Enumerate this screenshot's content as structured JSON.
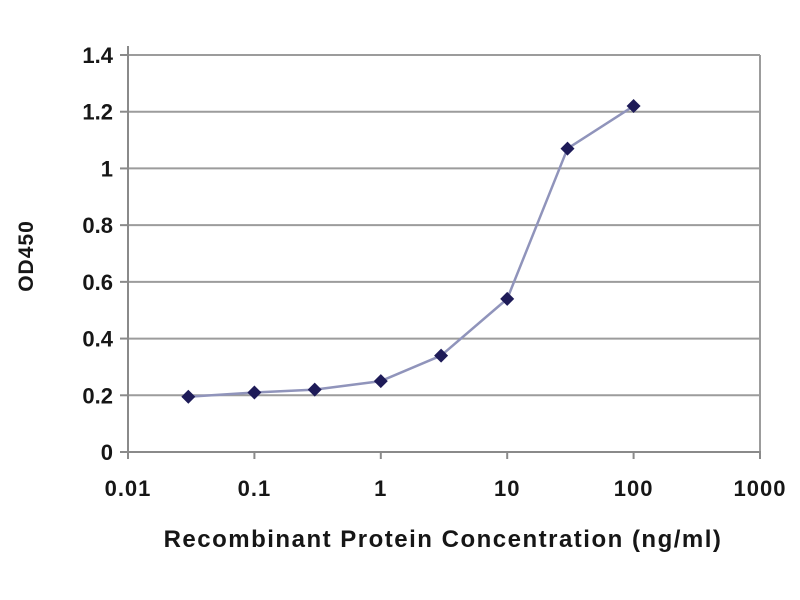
{
  "chart_data": {
    "type": "line",
    "title": "",
    "xlabel": "Recombinant Protein Concentration (ng/ml)",
    "ylabel": "OD450",
    "x_scale": "log",
    "xlim": [
      0.01,
      1000
    ],
    "ylim": [
      0,
      1.4
    ],
    "x_ticks": [
      0.01,
      0.1,
      1,
      10,
      100,
      1000
    ],
    "x_tick_labels": [
      "0.01",
      "0.1",
      "1",
      "10",
      "100",
      "1000"
    ],
    "y_ticks": [
      0,
      0.2,
      0.4,
      0.6,
      0.8,
      1,
      1.2,
      1.4
    ],
    "y_tick_labels": [
      "0",
      "0.2",
      "0.4",
      "0.6",
      "0.8",
      "1",
      "1.2",
      "1.4"
    ],
    "grid": "horizontal",
    "legend": "none",
    "series": [
      {
        "name": "OD450",
        "x": [
          0.03,
          0.1,
          0.3,
          1,
          3,
          10,
          30,
          100
        ],
        "y": [
          0.195,
          0.21,
          0.22,
          0.25,
          0.34,
          0.54,
          1.07,
          1.22
        ],
        "marker": "diamond"
      }
    ],
    "colors": {
      "line": "#9094bb",
      "marker": "#1e1b58",
      "grid": "#9c9c9c",
      "axis": "#8a8a8a",
      "text": "#161616",
      "background": "#ffffff"
    }
  }
}
